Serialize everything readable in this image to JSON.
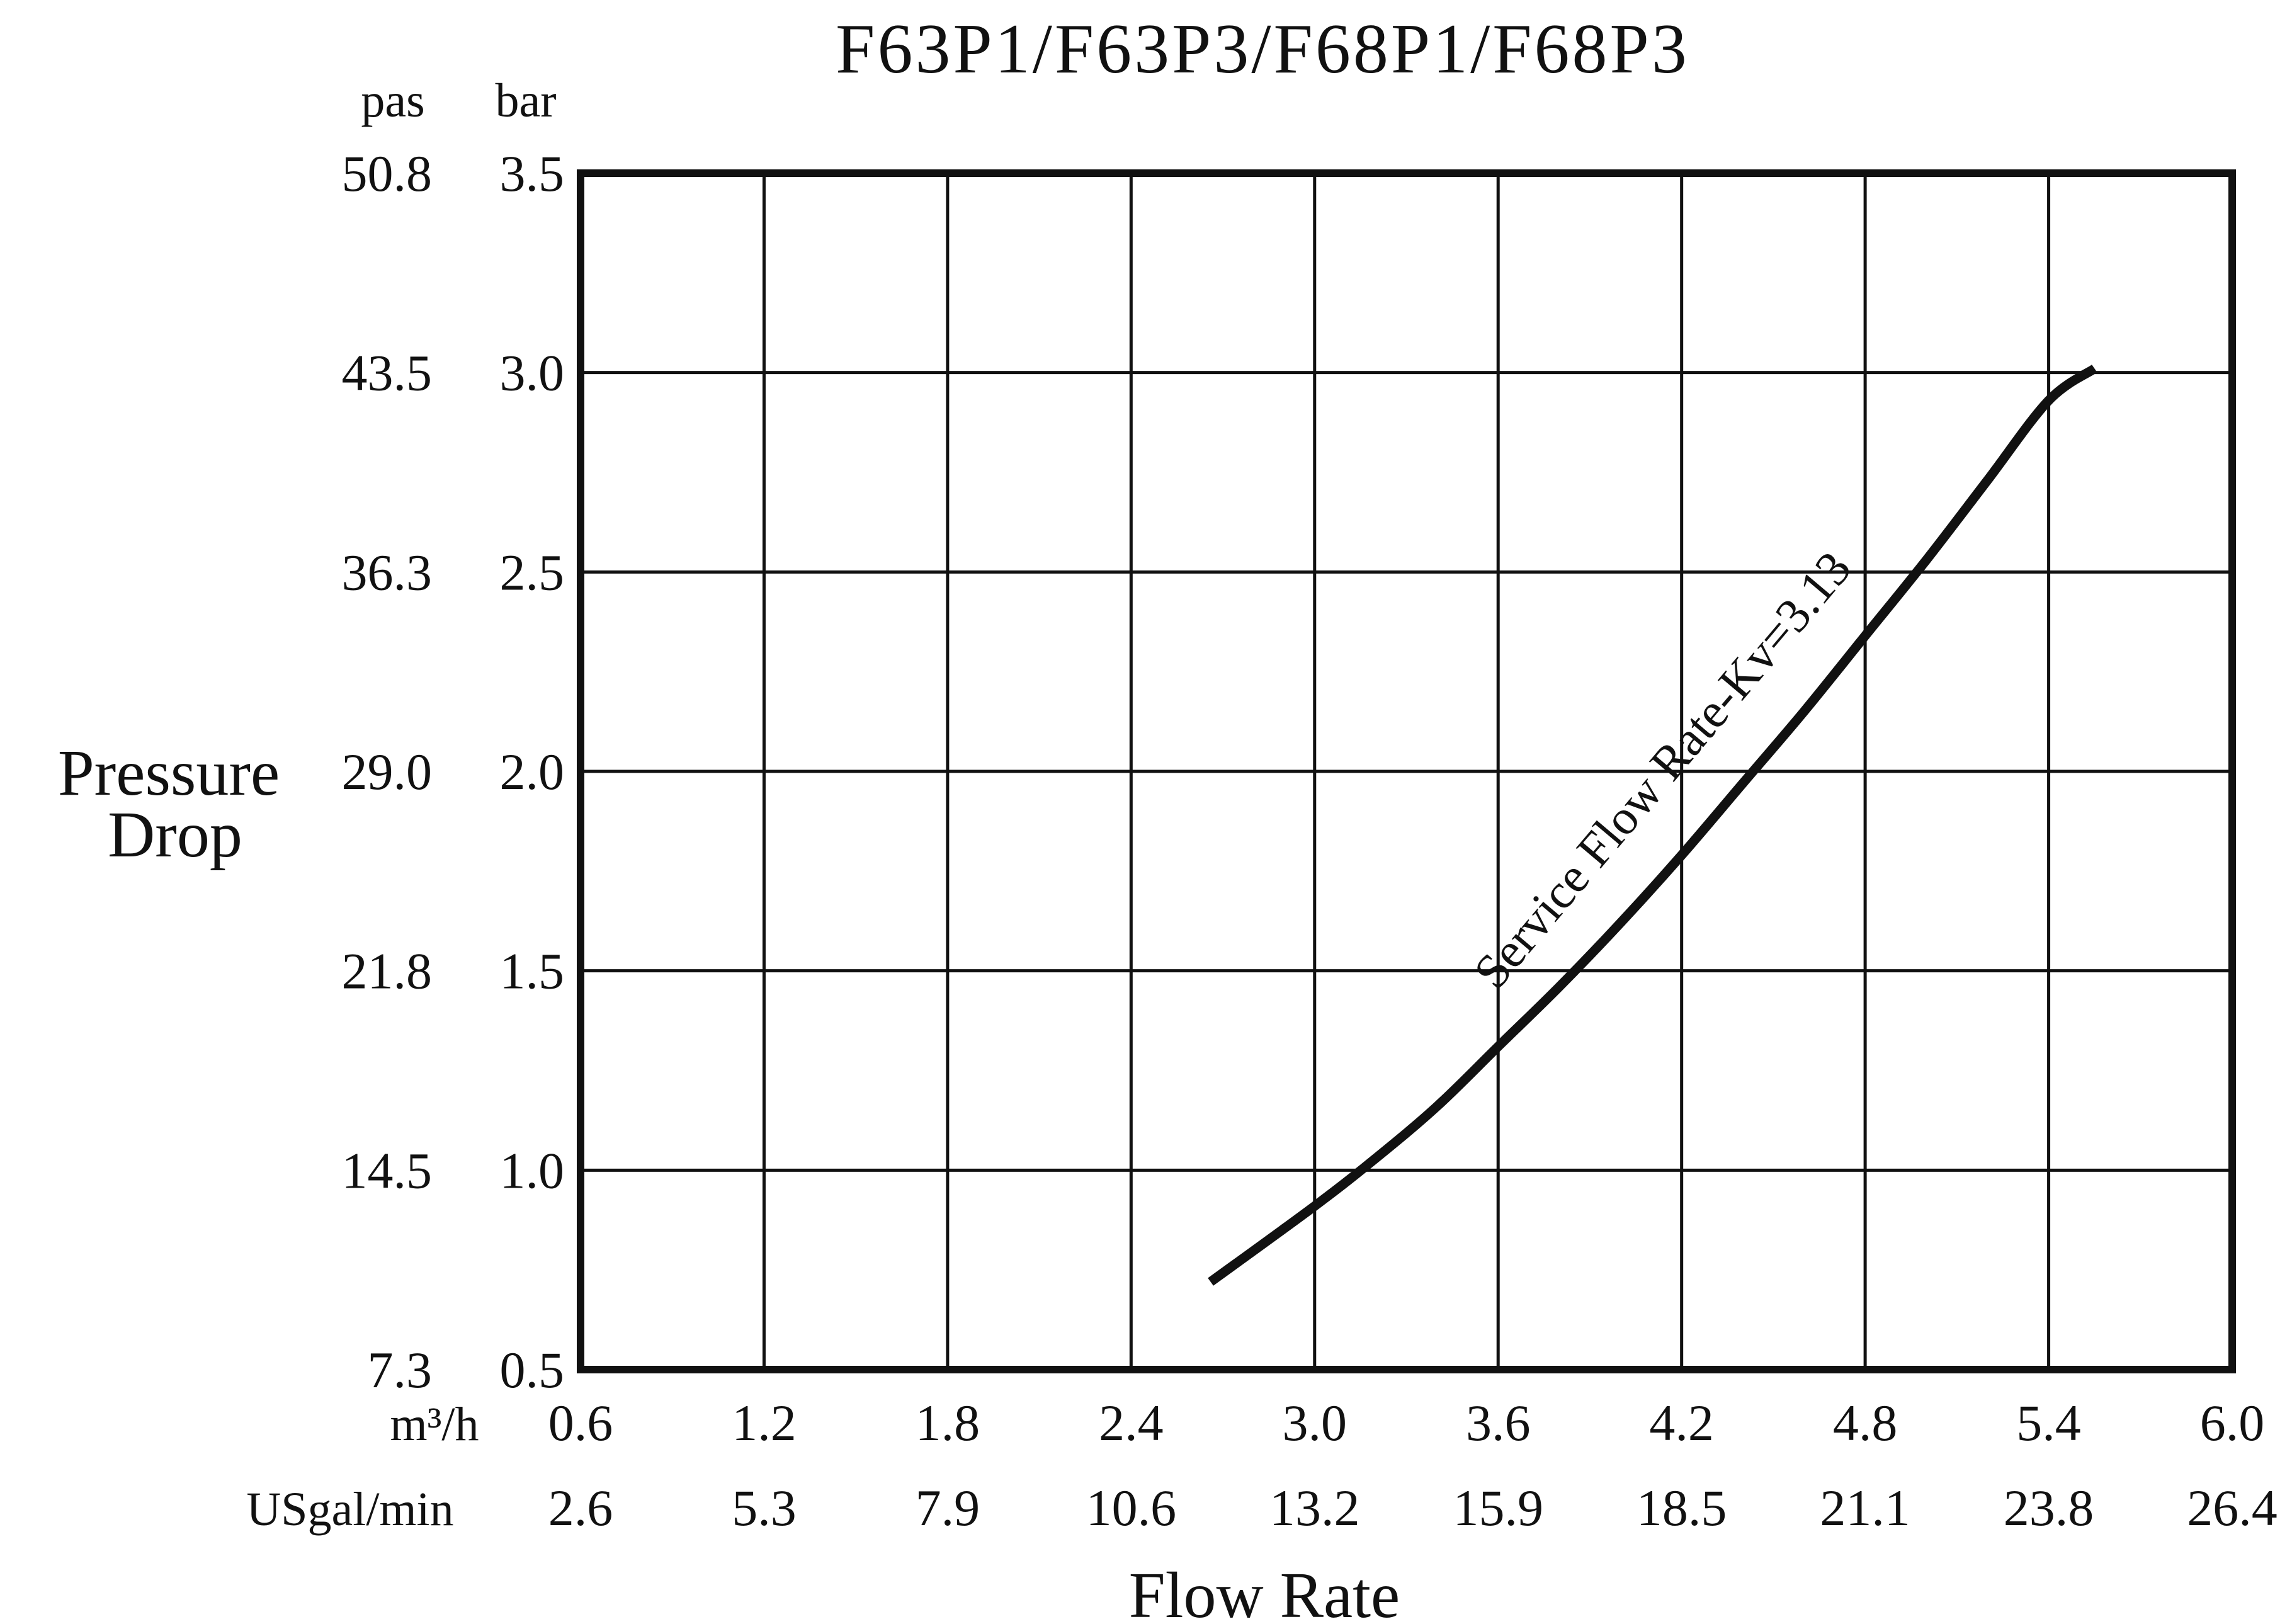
{
  "chart_data": {
    "type": "line",
    "title": "F63P1/F63P3/F68P1/F68P3",
    "xlabel": "Flow Rate",
    "ylabel_lines": [
      "Pressure",
      "Drop"
    ],
    "x_units": {
      "primary": "m³/h",
      "secondary": "USgal/min"
    },
    "y_units": {
      "primary": "bar",
      "secondary": "pas"
    },
    "x_ticks_primary": [
      "0.6",
      "1.2",
      "1.8",
      "2.4",
      "3.0",
      "3.6",
      "4.2",
      "4.8",
      "5.4",
      "6.0"
    ],
    "x_ticks_secondary": [
      "2.6",
      "5.3",
      "7.9",
      "10.6",
      "13.2",
      "15.9",
      "18.5",
      "21.1",
      "23.8",
      "26.4"
    ],
    "y_ticks_primary": [
      "0.5",
      "1.0",
      "1.5",
      "2.0",
      "2.5",
      "3.0",
      "3.5"
    ],
    "y_ticks_secondary": [
      "7.3",
      "14.5",
      "21.8",
      "29.0",
      "36.3",
      "43.5",
      "50.8"
    ],
    "xlim": [
      0.6,
      6.0
    ],
    "ylim": [
      0.5,
      3.5
    ],
    "grid": true,
    "series": [
      {
        "name": "Service Flow Rate-Kv=3.13",
        "x": [
          2.66,
          3.0,
          3.2,
          3.4,
          3.6,
          3.8,
          4.0,
          4.2,
          4.4,
          4.6,
          4.8,
          5.0,
          5.2,
          5.4,
          5.55
        ],
        "y": [
          0.72,
          0.91,
          1.03,
          1.16,
          1.31,
          1.46,
          1.62,
          1.79,
          1.97,
          2.15,
          2.34,
          2.53,
          2.73,
          2.93,
          3.01
        ]
      }
    ]
  }
}
